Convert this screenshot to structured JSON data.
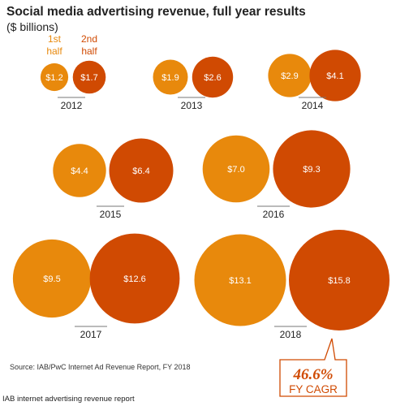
{
  "colors": {
    "first_half": "#e8890c",
    "second_half": "#d04a02",
    "divider": "#777777",
    "callout_border": "#d04a02"
  },
  "chart_data": {
    "type": "bubble",
    "title": "Social media advertising revenue, full year results",
    "subtitle": "($ billions)",
    "legend": [
      "1st half",
      "2nd half"
    ],
    "categories": [
      "2012",
      "2013",
      "2014",
      "2015",
      "2016",
      "2017",
      "2018"
    ],
    "series": [
      {
        "name": "1st half",
        "values": [
          1.2,
          1.9,
          2.9,
          4.4,
          7.0,
          9.5,
          13.1
        ],
        "labels": [
          "$1.2",
          "$1.9",
          "$2.9",
          "$4.4",
          "$7.0",
          "$9.5",
          "$13.1"
        ]
      },
      {
        "name": "2nd half",
        "values": [
          1.7,
          2.6,
          4.1,
          6.4,
          9.3,
          12.6,
          15.8
        ],
        "labels": [
          "$1.7",
          "$2.6",
          "$4.1",
          "$6.4",
          "$9.3",
          "$12.6",
          "$15.8"
        ]
      }
    ],
    "annotation": {
      "value": "46.6%",
      "label": "FY CAGR"
    }
  },
  "source": "Source: IAB/PwC Internet Ad Revenue Report,  FY 2018",
  "footer": "IAB internet advertising revenue report"
}
